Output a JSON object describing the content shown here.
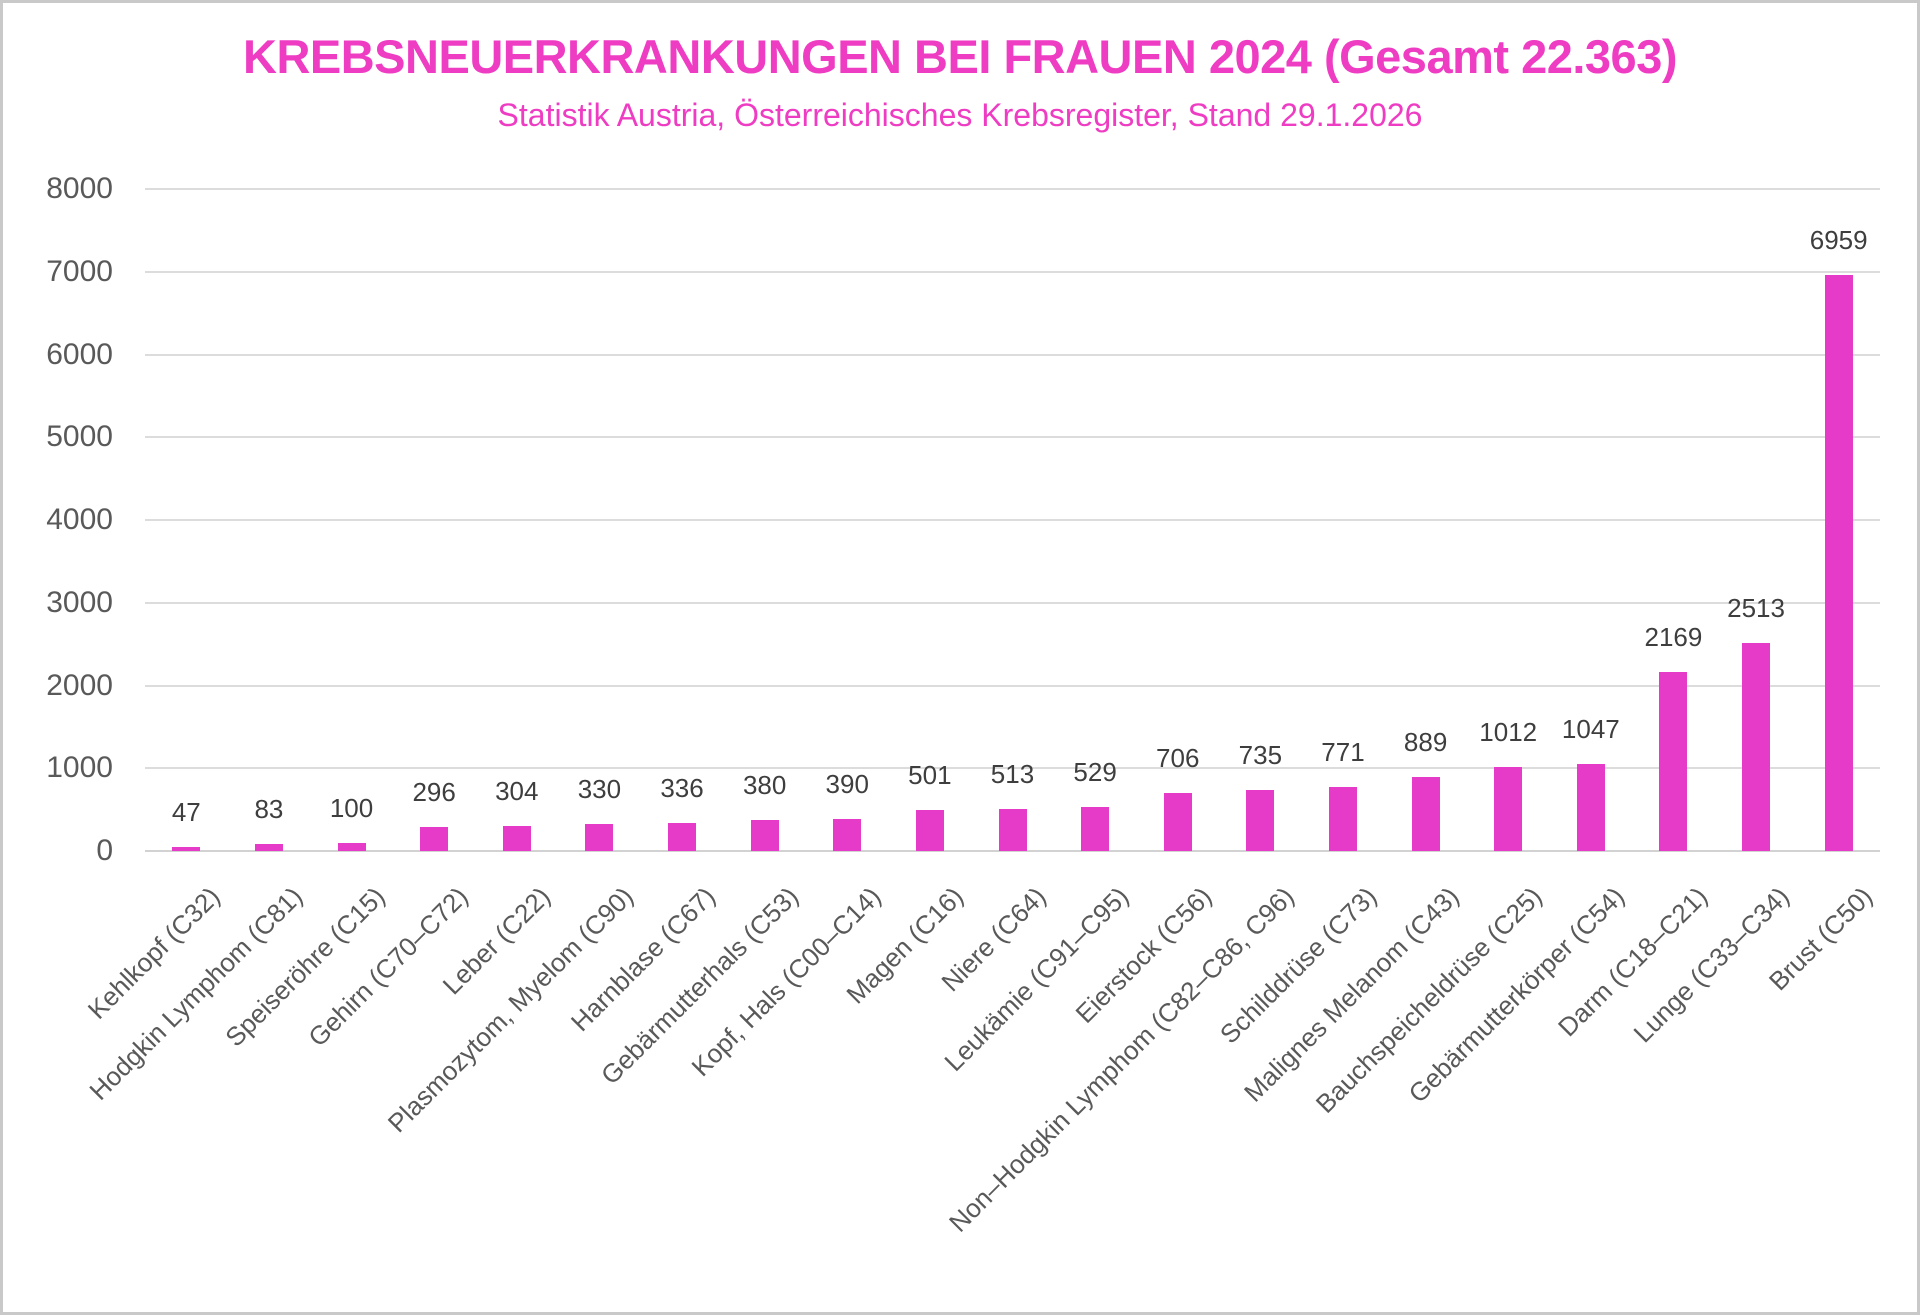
{
  "chart": {
    "title": "KREBSNEUERKRANKUNGEN BEI FRAUEN 2024 (Gesamt 22.363)",
    "subtitle": "Statistik Austria, Österreichisches Krebsregister, Stand 29.1.2026"
  },
  "chart_data": {
    "type": "bar",
    "title": "KREBSNEUERKRANKUNGEN BEI FRAUEN 2024 (Gesamt 22.363)",
    "subtitle": "Statistik Austria, Österreichisches Krebsregister, Stand 29.1.2026",
    "total_shown_in_title": "22.363",
    "categories": [
      "Kehlkopf (C32)",
      "Hodgkin Lymphom (C81)",
      "Speiseröhre (C15)",
      "Gehirn (C70–C72)",
      "Leber (C22)",
      "Plasmozytom, Myelom (C90)",
      "Harnblase (C67)",
      "Gebärmutterhals (C53)",
      "Kopf, Hals (C00–C14)",
      "Magen (C16)",
      "Niere (C64)",
      "Leukämie (C91–C95)",
      "Eierstock (C56)",
      "Non–Hodgkin Lymphom (C82–C86, C96)",
      "Schilddrüse (C73)",
      "Malignes Melanom (C43)",
      "Bauchspeicheldrüse (C25)",
      "Gebärmutterkörper (C54)",
      "Darm (C18–C21)",
      "Lunge (C33–C34)",
      "Brust (C50)"
    ],
    "values": [
      47,
      83,
      100,
      296,
      304,
      330,
      336,
      380,
      390,
      501,
      513,
      529,
      706,
      735,
      771,
      889,
      1012,
      1047,
      2169,
      2513,
      6959
    ],
    "value_labels_shown": true,
    "xlabel": "",
    "ylabel": "",
    "ylim": [
      0,
      8000
    ],
    "ytick_step": 1000,
    "yticks": [
      "0",
      "1000",
      "2000",
      "3000",
      "4000",
      "5000",
      "6000",
      "7000",
      "8000"
    ],
    "grid": "horizontal",
    "legend": "none",
    "x_label_rotation_deg": -45,
    "colors": {
      "bar": "#e53bc8",
      "title": "#ee3cc3",
      "axis_labels": "#595959",
      "value_labels": "#3e3e3e",
      "gridlines": "#dcdcdc",
      "background": "#ffffff",
      "outer_border": "#c9c9c9"
    }
  }
}
